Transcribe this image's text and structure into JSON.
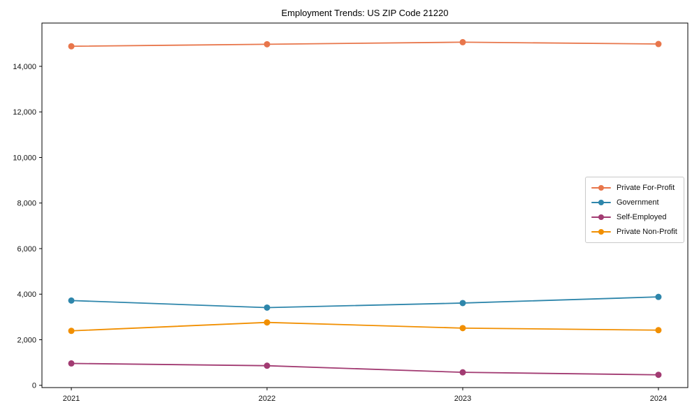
{
  "page": {
    "title": "Employment Trends: US ZIP Code 21220"
  },
  "chart_data": {
    "type": "line",
    "title": "Employment Trends: US ZIP Code 21220",
    "xlabel": "",
    "ylabel": "",
    "x": [
      2021,
      2022,
      2023,
      2024
    ],
    "x_labels": [
      "2021",
      "2022",
      "2023",
      "2024"
    ],
    "series": [
      {
        "name": "Private For-Profit",
        "color": "#E8764B",
        "values": [
          14880,
          14970,
          15060,
          14980
        ]
      },
      {
        "name": "Government",
        "color": "#2E86AB",
        "values": [
          3720,
          3410,
          3610,
          3880
        ]
      },
      {
        "name": "Self-Employed",
        "color": "#A23B72",
        "values": [
          960,
          860,
          570,
          460
        ]
      },
      {
        "name": "Private Non-Profit",
        "color": "#F18F01",
        "values": [
          2390,
          2760,
          2510,
          2420
        ]
      }
    ],
    "ylim": [
      -100,
      15900
    ],
    "yticks": [
      0,
      2000,
      4000,
      6000,
      8000,
      10000,
      12000,
      14000
    ],
    "ytick_labels": [
      "0",
      "2,000",
      "4,000",
      "6,000",
      "8,000",
      "10,000",
      "12,000",
      "14,000"
    ],
    "grid": false,
    "legend_position": "center-right",
    "axis_color": "#000000",
    "tick_label_color": "#111111"
  }
}
